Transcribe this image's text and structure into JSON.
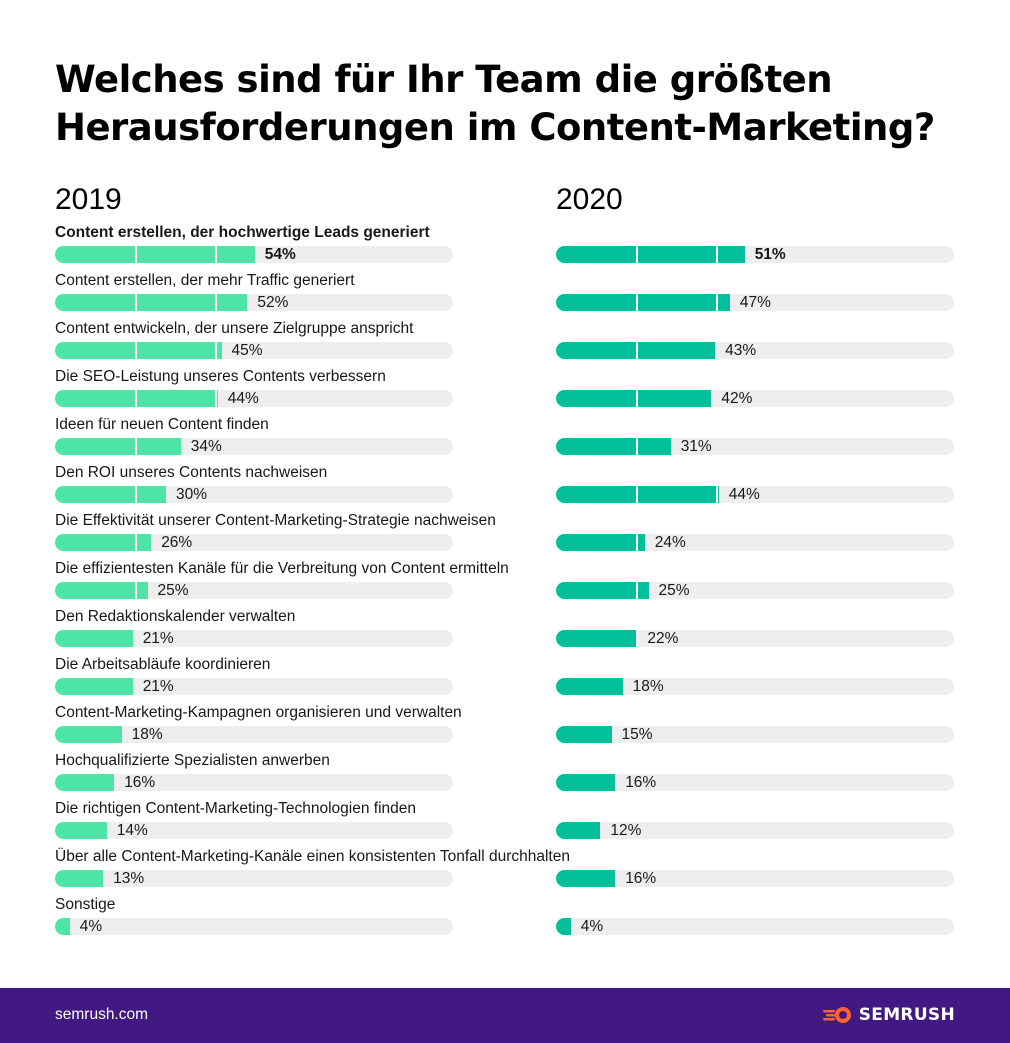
{
  "header": {
    "title_line1": "Welches sind für Ihr Team die größten",
    "title_line2": "Herausforderungen im Content-Marketing?"
  },
  "chart_data": {
    "type": "bar",
    "orientation": "horizontal",
    "title": "Welches sind für Ihr Team die größten Herausforderungen im Content-Marketing?",
    "unit": "%",
    "xlim": [
      0,
      100
    ],
    "categories": [
      "Content erstellen, der hochwertige Leads generiert",
      "Content erstellen, der mehr Traffic generiert",
      "Content entwickeln, der unsere Zielgruppe anspricht",
      "Die SEO-Leistung unseres Contents verbessern",
      "Ideen für neuen Content finden",
      "Den ROI unseres Contents nachweisen",
      "Die Effektivität unserer Content-Marketing-Strategie nachweisen",
      "Die effizientesten Kanäle für die Verbreitung von Content ermitteln",
      "Den Redaktionskalender verwalten",
      "Die Arbeitsabläufe koordinieren",
      "Content-Marketing-Kampagnen organisieren und verwalten",
      "Hochqualifizierte Spezialisten anwerben",
      "Die richtigen Content-Marketing-Technologien finden",
      "Über alle Content-Marketing-Kanäle einen konsistenten Tonfall durchhalten",
      "Sonstige"
    ],
    "series": [
      {
        "name": "2019",
        "color": "#4ee4a5",
        "values": [
          54,
          52,
          45,
          44,
          34,
          30,
          26,
          25,
          21,
          21,
          18,
          16,
          14,
          13,
          4
        ]
      },
      {
        "name": "2020",
        "color": "#00bf9a",
        "values": [
          51,
          47,
          43,
          42,
          31,
          44,
          24,
          25,
          22,
          18,
          15,
          16,
          12,
          16,
          4
        ]
      }
    ],
    "value_labels": {
      "2019": [
        "54%",
        "52%",
        "45%",
        "44%",
        "34%",
        "30%",
        "26%",
        "25%",
        "21%",
        "21%",
        "18%",
        "16%",
        "14%",
        "13%",
        "4%"
      ],
      "2020": [
        "51%",
        "47%",
        "43%",
        "42%",
        "31%",
        "44%",
        "24%",
        "25%",
        "22%",
        "18%",
        "15%",
        "16%",
        "12%",
        "16%",
        "4%"
      ]
    },
    "highlight_index": 0,
    "track_color": "#eeeeee"
  },
  "footer": {
    "site": "semrush.com",
    "brand": "SEMRUSH",
    "background": "#421983",
    "logo_color": "#ff642d"
  }
}
